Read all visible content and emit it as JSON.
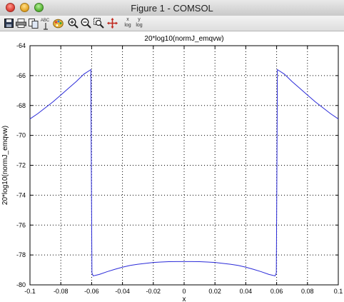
{
  "window": {
    "title": "Figure 1 - COMSOL"
  },
  "toolbar": {
    "items": [
      {
        "icon": "save-icon"
      },
      {
        "icon": "print-icon"
      },
      {
        "icon": "copy-icon"
      },
      {
        "icon": "text-abc-icon",
        "label": "ABC"
      },
      {
        "icon": "color-palette-icon"
      },
      {
        "icon": "zoom-in-icon"
      },
      {
        "icon": "zoom-out-icon"
      },
      {
        "icon": "zoom-box-icon"
      },
      {
        "icon": "pan-icon"
      },
      {
        "icon": "x-log-icon",
        "label_top": "x",
        "label_bottom": "log"
      },
      {
        "icon": "y-log-icon",
        "label_top": "y",
        "label_bottom": "log"
      }
    ]
  },
  "chart_data": {
    "type": "line",
    "title": "20*log10(normJ_emqvw)",
    "xlabel": "x",
    "ylabel": "20*log10(normJ_emqvw)",
    "xlim": [
      -0.1,
      0.1
    ],
    "ylim": [
      -80,
      -64
    ],
    "xticks": [
      -0.1,
      -0.08,
      -0.06,
      -0.04,
      -0.02,
      0,
      0.02,
      0.04,
      0.06,
      0.08,
      0.1
    ],
    "xtick_labels": [
      "-0.1",
      "-0.08",
      "-0.06",
      "-0.04",
      "-0.02",
      "0",
      "0.02",
      "0.04",
      "0.06",
      "0.08",
      "0.1"
    ],
    "yticks": [
      -80,
      -78,
      -76,
      -74,
      -72,
      -70,
      -68,
      -66,
      -64
    ],
    "ytick_labels": [
      "-80",
      "-78",
      "-76",
      "-74",
      "-72",
      "-70",
      "-68",
      "-66",
      "-64"
    ],
    "grid": true,
    "line_color": "#2b2bd9",
    "series": [
      {
        "x": [
          -0.1,
          -0.095,
          -0.09,
          -0.085,
          -0.08,
          -0.075,
          -0.07,
          -0.065,
          -0.0605,
          -0.0602,
          -0.0598,
          -0.059,
          -0.057,
          -0.055,
          -0.05,
          -0.045,
          -0.04,
          -0.035,
          -0.03,
          -0.025,
          -0.02,
          -0.015,
          -0.01,
          -0.005,
          0,
          0.005,
          0.01,
          0.015,
          0.02,
          0.025,
          0.03,
          0.035,
          0.04,
          0.045,
          0.05,
          0.055,
          0.057,
          0.059,
          0.0598,
          0.0602,
          0.0605,
          0.065,
          0.07,
          0.075,
          0.08,
          0.085,
          0.09,
          0.095,
          0.1
        ],
        "y": [
          -68.9,
          -68.55,
          -68.15,
          -67.75,
          -67.3,
          -66.85,
          -66.4,
          -65.9,
          -65.6,
          -72.0,
          -79.2,
          -79.4,
          -79.35,
          -79.3,
          -79.12,
          -78.96,
          -78.82,
          -78.7,
          -78.62,
          -78.56,
          -78.5,
          -78.47,
          -78.45,
          -78.44,
          -78.44,
          -78.44,
          -78.45,
          -78.47,
          -78.5,
          -78.56,
          -78.62,
          -78.7,
          -78.82,
          -78.96,
          -79.12,
          -79.3,
          -79.35,
          -79.4,
          -79.2,
          -72.0,
          -65.6,
          -65.9,
          -66.4,
          -66.85,
          -67.3,
          -67.75,
          -68.15,
          -68.55,
          -68.9
        ]
      }
    ]
  }
}
